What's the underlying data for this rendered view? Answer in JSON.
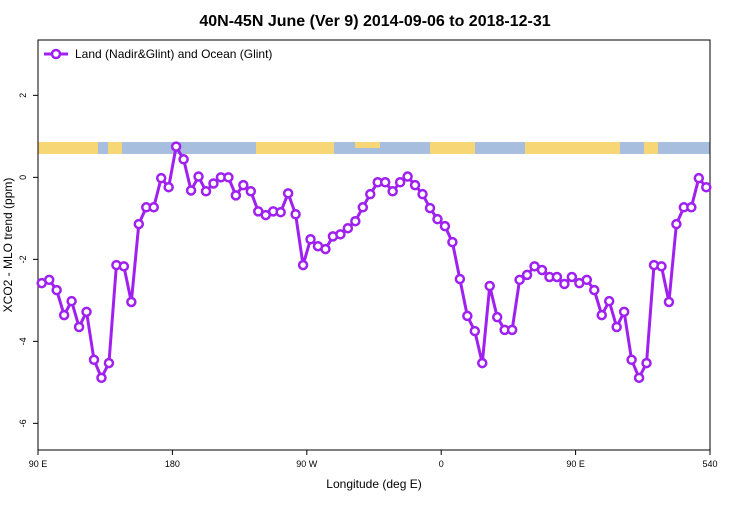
{
  "chart_data": {
    "type": "line",
    "title": "40N-45N June (Ver 9)   2014-09-06 to 2018-12-31",
    "xlabel": "Longitude (deg E)",
    "ylabel": "XCO2 - MLO trend (ppm)",
    "xlim": [
      90,
      540
    ],
    "ylim": [
      -6.65,
      3.35
    ],
    "xticks": [
      {
        "value": 90,
        "label": "90 E"
      },
      180,
      {
        "value": 270,
        "label": "90 W"
      },
      {
        "value": 360,
        "label": "0"
      },
      {
        "value": 450,
        "label": "90 E"
      },
      540
    ],
    "yticks": [
      -6,
      -4,
      -2,
      0,
      2
    ],
    "legend": "top-left",
    "x": [
      92.5,
      97.5,
      102.5,
      107.5,
      112.5,
      117.5,
      122.5,
      127.5,
      132.5,
      137.5,
      142.5,
      147.5,
      152.5,
      157.5,
      162.5,
      167.5,
      172.5,
      177.5,
      182.5,
      187.5,
      192.5,
      197.5,
      202.5,
      207.5,
      212.5,
      217.5,
      222.5,
      227.5,
      232.5,
      237.5,
      242.5,
      247.5,
      252.5,
      257.5,
      262.5,
      267.5,
      272.5,
      277.5,
      282.5,
      287.5,
      292.5,
      297.5,
      302.5,
      307.5,
      312.5,
      317.5,
      322.5,
      327.5,
      332.5,
      337.5,
      342.5,
      347.5,
      352.5,
      357.5,
      362.5,
      367.5,
      372.5,
      377.5,
      382.5,
      387.5,
      392.5,
      397.5,
      402.5,
      407.5,
      412.5,
      417.5,
      422.5,
      427.5,
      432.5,
      437.5,
      442.5,
      447.5,
      452.5,
      457.5,
      462.5,
      467.5,
      472.5,
      477.5,
      482.5,
      487.5,
      492.5,
      497.5,
      502.5,
      507.5,
      512.5,
      517.5,
      522.5,
      527.5,
      532.5,
      537.5
    ],
    "series": [
      {
        "name": "Land (Nadir&Glint) and Ocean (Glint)",
        "color": "#a020f0",
        "values": [
          -2.58,
          -2.5,
          -2.75,
          -3.36,
          -3.02,
          -3.65,
          -3.28,
          -4.45,
          -4.89,
          -4.53,
          -2.14,
          -2.17,
          -3.04,
          -1.14,
          -0.73,
          -0.73,
          -0.02,
          -0.24,
          0.75,
          0.44,
          -0.32,
          0.02,
          -0.34,
          -0.15,
          0,
          0,
          -0.44,
          -0.19,
          -0.34,
          -0.83,
          -0.92,
          -0.83,
          -0.85,
          -0.39,
          -0.9,
          -2.14,
          -1.51,
          -1.68,
          -1.75,
          -1.44,
          -1.39,
          -1.24,
          -1.07,
          -0.73,
          -0.41,
          -0.12,
          -0.12,
          -0.34,
          -0.12,
          0.02,
          -0.19,
          -0.41,
          -0.75,
          -1.02,
          -1.19,
          -1.58,
          -2.48,
          -3.38,
          -3.75,
          -4.53,
          -2.65,
          -3.41,
          -3.72,
          -3.72,
          -2.5,
          -2.38,
          -2.17,
          -2.26,
          -2.43,
          -2.43,
          -2.6,
          -2.43,
          -2.58,
          -2.5,
          -2.75,
          -3.36,
          -3.02,
          -3.65,
          -3.28,
          -4.45,
          -4.89,
          -4.53,
          -2.14,
          -2.17,
          -3.04,
          -1.14,
          -0.73,
          -0.73,
          -0.02,
          -0.24
        ]
      }
    ]
  }
}
